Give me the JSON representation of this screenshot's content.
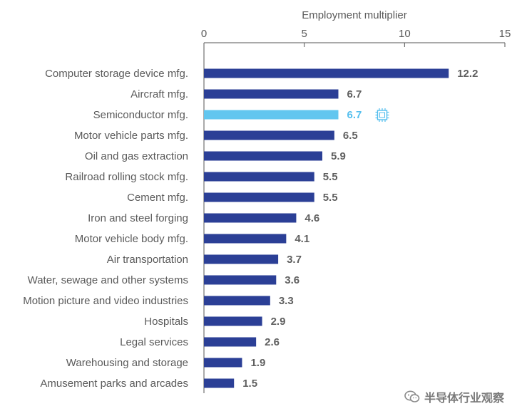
{
  "chart_data": {
    "type": "bar",
    "orientation": "horizontal",
    "title": "",
    "xlabel": "Employment multiplier",
    "ylabel": "",
    "xlim": [
      0,
      15
    ],
    "xticks": [
      0,
      5,
      10,
      15
    ],
    "xtick_labels": [
      "0",
      "5",
      "10",
      "15"
    ],
    "x_axis_position": "top",
    "grid": false,
    "categories": [
      "Computer storage device mfg.",
      "Aircraft mfg.",
      "Semiconductor mfg.",
      "Motor vehicle parts mfg.",
      "Oil and gas extraction",
      "Railroad rolling stock mfg.",
      "Cement mfg.",
      "Iron and steel forging",
      "Motor vehicle body mfg.",
      "Air transportation",
      "Water, sewage and other systems",
      "Motion picture and video industries",
      "Hospitals",
      "Legal services",
      "Warehousing and storage",
      "Amusement parks and arcades"
    ],
    "values": [
      12.2,
      6.7,
      6.7,
      6.5,
      5.9,
      5.5,
      5.5,
      4.6,
      4.1,
      3.7,
      3.6,
      3.3,
      2.9,
      2.6,
      1.9,
      1.5
    ],
    "value_labels": [
      "12.2",
      "6.7",
      "6.7",
      "6.5",
      "5.9",
      "5.5",
      "5.5",
      "4.6",
      "4.1",
      "3.7",
      "3.6",
      "3.3",
      "2.9",
      "2.6",
      "1.9",
      "1.5"
    ],
    "highlight_index": 2,
    "highlight_icon": "chip-icon",
    "colors": {
      "bar": "#2b3f96",
      "highlight_bar": "#62c6ef",
      "value_label": "#5f5f5f",
      "highlight_label": "#55bfee",
      "category_label": "#5a5a5a",
      "axis": "#555555"
    }
  },
  "watermark": {
    "icon": "wechat-icon",
    "text": "半导体行业观察"
  }
}
